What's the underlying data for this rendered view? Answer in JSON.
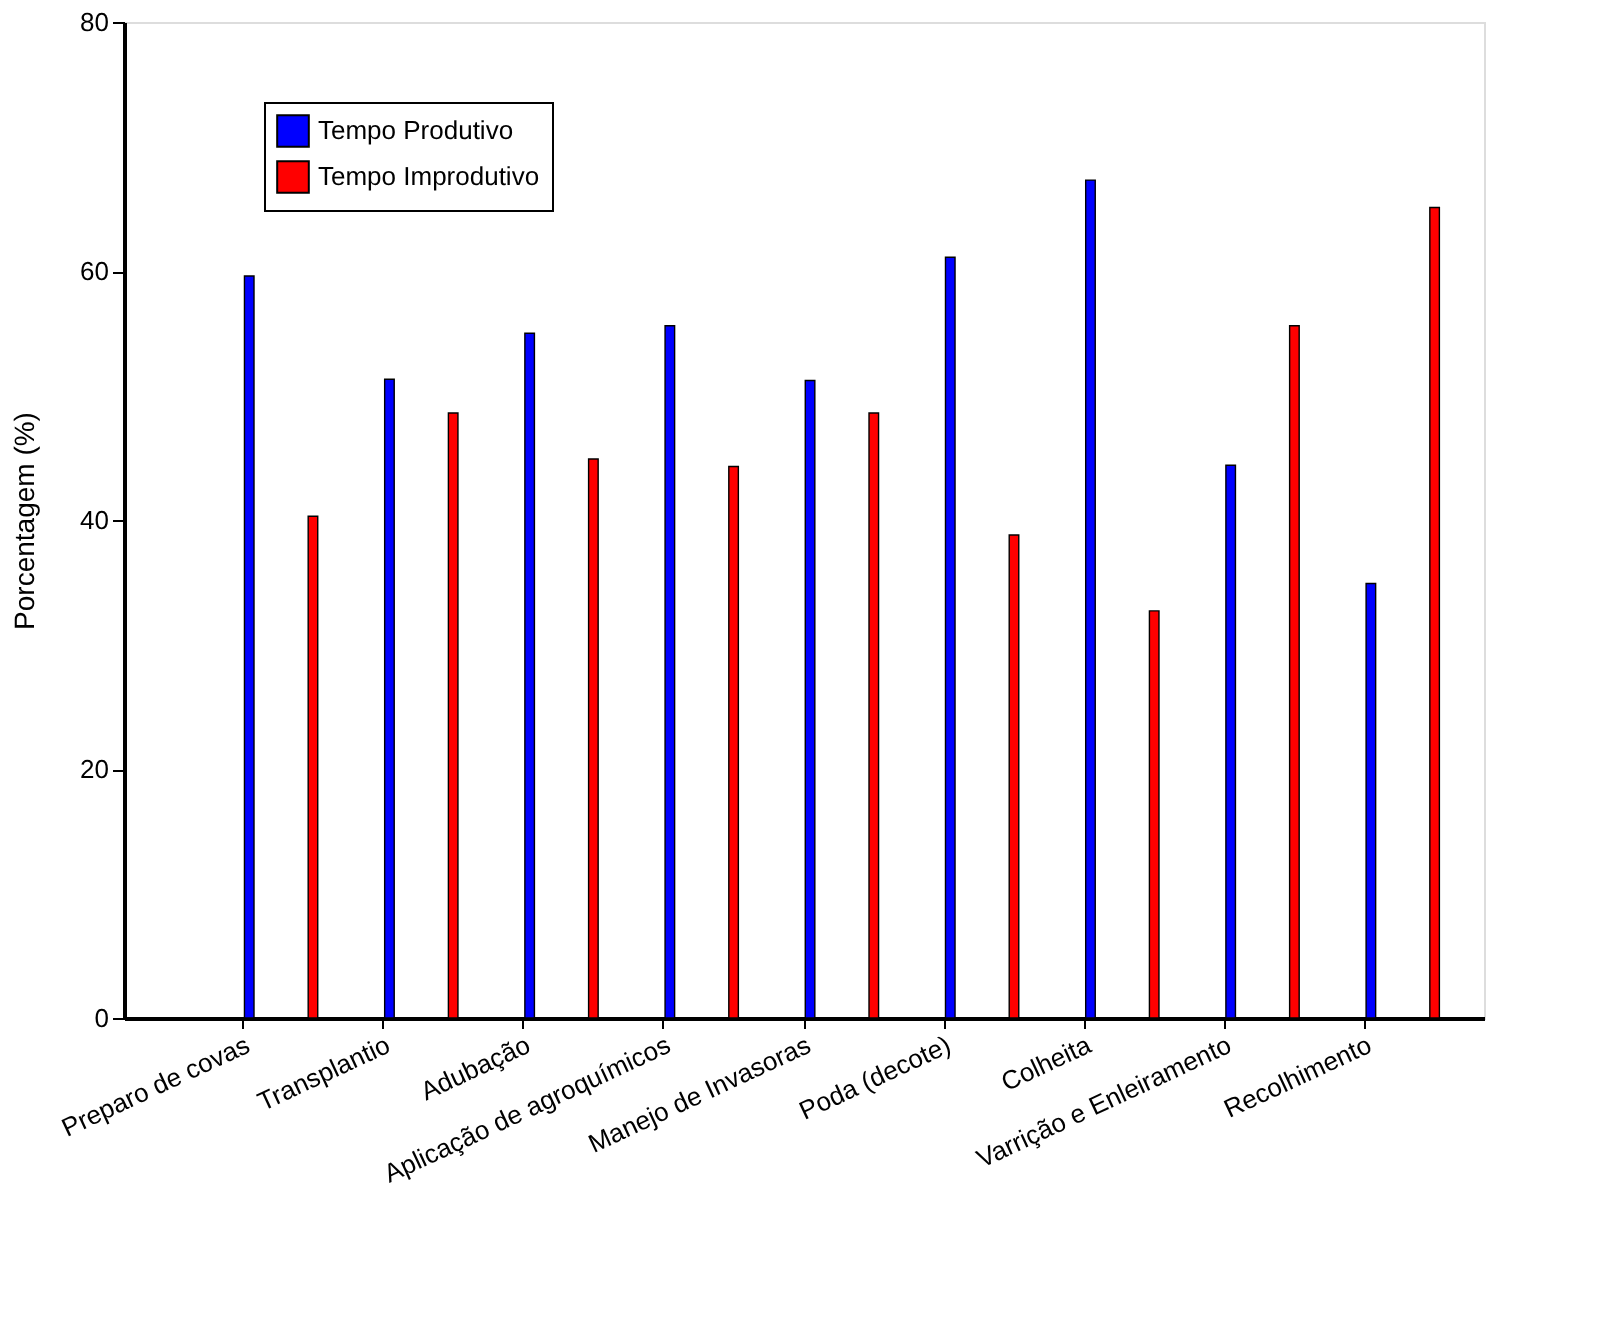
{
  "chart_data": {
    "type": "bar",
    "ylabel": "Porcentagem (%)",
    "categories": [
      "Preparo de covas",
      "Transplantio",
      "Adubação",
      "Aplicação de agroquímicos",
      "Manejo de Invasoras",
      "Poda (decote)",
      "Colheita",
      "Varrição e Enleiramento",
      "Recolhimento"
    ],
    "series": [
      {
        "name": "Tempo Produtivo",
        "color": "#0000ff",
        "values": [
          59.6,
          51.3,
          55.0,
          55.6,
          51.2,
          61.1,
          67.3,
          44.4,
          34.9
        ]
      },
      {
        "name": "Tempo Improdutivo",
        "color": "#ff0000",
        "values": [
          40.3,
          48.6,
          44.9,
          44.3,
          48.6,
          38.8,
          32.7,
          55.6,
          65.1
        ]
      }
    ],
    "ylim": [
      0,
      80
    ],
    "yticks": [
      0,
      20,
      40,
      60,
      80
    ],
    "grid": false,
    "legend": "top left"
  }
}
